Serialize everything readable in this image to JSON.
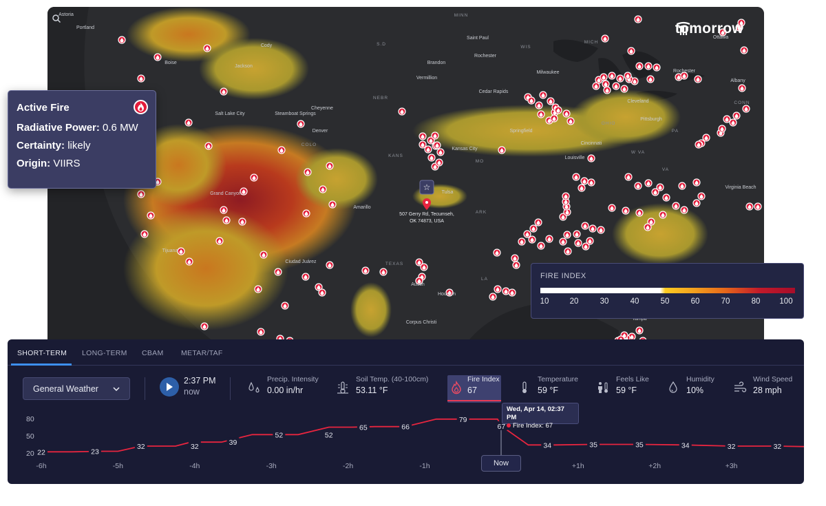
{
  "brand": {
    "name": "tomorrow"
  },
  "map": {
    "cities": [
      {
        "name": "Astoria",
        "x": 27,
        "y": 13
      },
      {
        "name": "Portland",
        "x": 55,
        "y": 32
      },
      {
        "name": "Boise",
        "x": 179,
        "y": 83
      },
      {
        "name": "Cody",
        "x": 318,
        "y": 58
      },
      {
        "name": "Jackson",
        "x": 285,
        "y": 88
      },
      {
        "name": "Salt Lake City",
        "x": 265,
        "y": 157
      },
      {
        "name": "Steamboat Springs",
        "x": 360,
        "y": 157
      },
      {
        "name": "Cheyenne",
        "x": 399,
        "y": 149
      },
      {
        "name": "Denver",
        "x": 396,
        "y": 182
      },
      {
        "name": "Grand Canyon",
        "x": 259,
        "y": 273
      },
      {
        "name": "Tijuana",
        "x": 178,
        "y": 356
      },
      {
        "name": "Ciudad Juárez",
        "x": 368,
        "y": 372
      },
      {
        "name": "Amarillo",
        "x": 457,
        "y": 293
      },
      {
        "name": "Tulsa",
        "x": 581,
        "y": 271
      },
      {
        "name": "Saint Paul",
        "x": 625,
        "y": 47
      },
      {
        "name": "Rochester",
        "x": 636,
        "y": 73
      },
      {
        "name": "Brandon",
        "x": 565,
        "y": 83
      },
      {
        "name": "Vermillion",
        "x": 551,
        "y": 105
      },
      {
        "name": "Cedar Rapids",
        "x": 648,
        "y": 125
      },
      {
        "name": "Milwaukee",
        "x": 727,
        "y": 97
      },
      {
        "name": "Springfield",
        "x": 688,
        "y": 182
      },
      {
        "name": "Kansas City",
        "x": 606,
        "y": 208
      },
      {
        "name": "Louisville",
        "x": 766,
        "y": 221
      },
      {
        "name": "Cincinnati",
        "x": 790,
        "y": 200
      },
      {
        "name": "Cleveland",
        "x": 858,
        "y": 139
      },
      {
        "name": "Pittsburgh",
        "x": 877,
        "y": 165
      },
      {
        "name": "Ottawa",
        "x": 978,
        "y": 46
      },
      {
        "name": "Rochester",
        "x": 925,
        "y": 95
      },
      {
        "name": "Albany",
        "x": 1003,
        "y": 109
      },
      {
        "name": "Virginia Beach",
        "x": 1007,
        "y": 264
      },
      {
        "name": "Austin",
        "x": 538,
        "y": 405
      },
      {
        "name": "Houston",
        "x": 580,
        "y": 419
      },
      {
        "name": "Corpus Christi",
        "x": 543,
        "y": 460
      },
      {
        "name": "Tampa",
        "x": 860,
        "y": 455
      }
    ],
    "states": [
      {
        "name": "MINN",
        "x": 601,
        "y": 14
      },
      {
        "name": "S.D",
        "x": 485,
        "y": 56
      },
      {
        "name": "WIS",
        "x": 695,
        "y": 60
      },
      {
        "name": "MICH",
        "x": 790,
        "y": 53
      },
      {
        "name": "NEBR",
        "x": 484,
        "y": 134
      },
      {
        "name": "COLO",
        "x": 380,
        "y": 202
      },
      {
        "name": "KANS",
        "x": 506,
        "y": 218
      },
      {
        "name": "MO",
        "x": 628,
        "y": 226
      },
      {
        "name": "OHIO",
        "x": 815,
        "y": 171
      },
      {
        "name": "W VA",
        "x": 858,
        "y": 213
      },
      {
        "name": "VA",
        "x": 898,
        "y": 238
      },
      {
        "name": "ARK",
        "x": 630,
        "y": 300
      },
      {
        "name": "TEXAS",
        "x": 504,
        "y": 375
      },
      {
        "name": "LA",
        "x": 635,
        "y": 397
      },
      {
        "name": "CONN",
        "x": 1009,
        "y": 141
      },
      {
        "name": "PA",
        "x": 912,
        "y": 182
      }
    ],
    "address": {
      "line1": "507 Gerry Rd, Tecumseh,",
      "line2": "OK 74873, USA"
    }
  },
  "popup": {
    "title": "Active Fire",
    "radiative_label": "Radiative Power:",
    "radiative_value": "0.6 MW",
    "certainty_label": "Certainty:",
    "certainty_value": "likely",
    "origin_label": "Origin:",
    "origin_value": "VIIRS"
  },
  "legend": {
    "title": "FIRE INDEX",
    "ticks": [
      "10",
      "20",
      "30",
      "40",
      "50",
      "60",
      "70",
      "80",
      "100"
    ]
  },
  "tabs": [
    "SHORT-TERM",
    "LONG-TERM",
    "CBAM",
    "METAR/TAF"
  ],
  "controls": {
    "dropdown": "General Weather",
    "time": "2:37 PM",
    "time_sub": "now"
  },
  "metrics": [
    {
      "name": "Precip. Intensity",
      "value": "0.00 in/hr",
      "icon": "raindrops-icon"
    },
    {
      "name": "Soil Temp. (40-100cm)",
      "value": "53.11 °F",
      "icon": "soil-thermometer-icon"
    },
    {
      "name": "Fire Index",
      "value": "67",
      "icon": "flame-icon"
    },
    {
      "name": "Temperature",
      "value": "59 °F",
      "icon": "thermometer-icon"
    },
    {
      "name": "Feels Like",
      "value": "59 °F",
      "icon": "feels-like-icon"
    },
    {
      "name": "Humidity",
      "value": "10%",
      "icon": "humidity-icon"
    },
    {
      "name": "Wind Speed",
      "value": "28 mph",
      "icon": "wind-icon"
    }
  ],
  "tooltip": {
    "date": "Wed, Apr 14, 02:37 PM",
    "series": "Fire Index: 67"
  },
  "now_label": "Now",
  "colors": {
    "accent_blue": "#3d8ff0",
    "fire_red": "#e8253f",
    "panel_bg": "#191b34"
  },
  "chart_data": {
    "type": "line",
    "series_name": "Fire Index",
    "x_ticks": [
      "-6h",
      "-5h",
      "-4h",
      "-3h",
      "-2h",
      "-1h",
      "+1h",
      "+2h",
      "+3h"
    ],
    "y_ticks": [
      "80",
      "50",
      "20"
    ],
    "ylim": [
      20,
      80
    ],
    "x_hours": [
      -6,
      -5.6,
      -5.2,
      -5.0,
      -4.7,
      -4.25,
      -4.05,
      -3.65,
      -3.25,
      -3.05,
      -2.65,
      -2.25,
      -1.95,
      -1.65,
      -1.25,
      -0.85,
      -0.4,
      -0.05,
      0,
      0.35,
      0.7,
      1.2,
      1.8,
      2.4,
      3.0,
      3.6,
      4.0
    ],
    "values": [
      22,
      22,
      23,
      23,
      32,
      32,
      39,
      39,
      52,
      52,
      52,
      65,
      65,
      66,
      66,
      79,
      79,
      79,
      67,
      34,
      34,
      35,
      35,
      34,
      32,
      32,
      31
    ],
    "point_labels": [
      {
        "h": -6.0,
        "v": 22,
        "text": "22"
      },
      {
        "h": -5.3,
        "v": 23,
        "text": "23"
      },
      {
        "h": -4.7,
        "v": 32,
        "text": "32"
      },
      {
        "h": -4.0,
        "v": 32,
        "text": "32"
      },
      {
        "h": -3.5,
        "v": 39,
        "text": "39"
      },
      {
        "h": -2.9,
        "v": 52,
        "text": "52"
      },
      {
        "h": -2.25,
        "v": 52,
        "text": "52"
      },
      {
        "h": -1.8,
        "v": 65,
        "text": "65"
      },
      {
        "h": -1.25,
        "v": 66,
        "text": "66"
      },
      {
        "h": -0.5,
        "v": 79,
        "text": "79"
      },
      {
        "h": 0.0,
        "v": 67,
        "text": "67"
      },
      {
        "h": 0.6,
        "v": 34,
        "text": "34"
      },
      {
        "h": 1.2,
        "v": 35,
        "text": "35"
      },
      {
        "h": 1.8,
        "v": 35,
        "text": "35"
      },
      {
        "h": 2.4,
        "v": 34,
        "text": "34"
      },
      {
        "h": 3.0,
        "v": 32,
        "text": "32"
      },
      {
        "h": 3.6,
        "v": 32,
        "text": "32"
      }
    ]
  }
}
